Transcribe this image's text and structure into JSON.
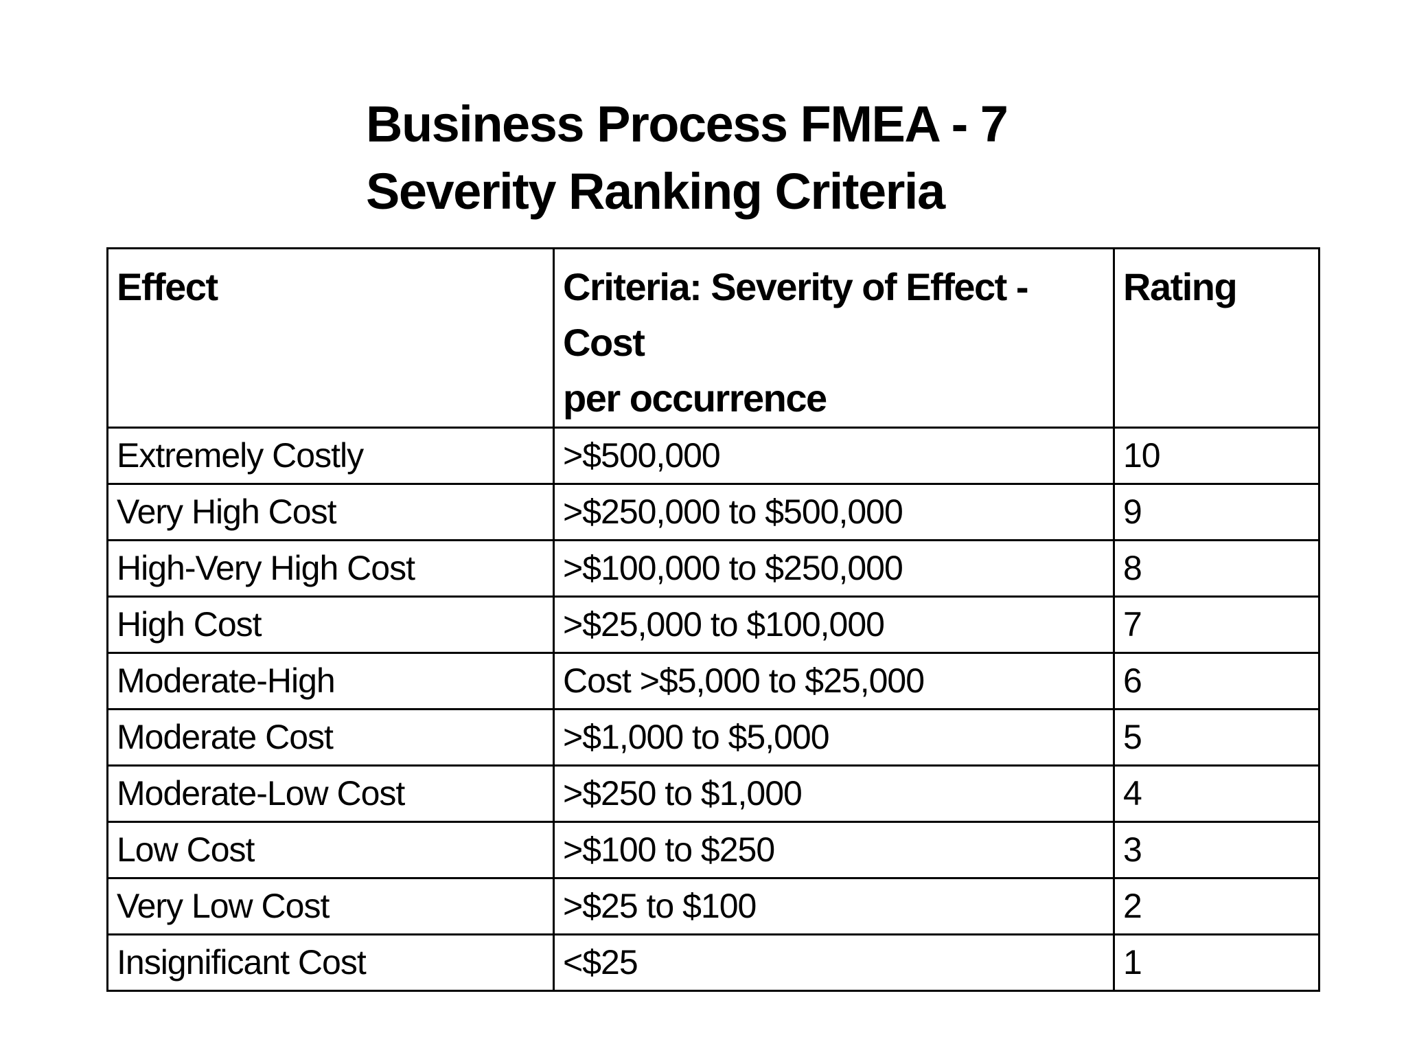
{
  "title": {
    "line1": "Business Process FMEA - 7",
    "line2": "Severity Ranking Criteria"
  },
  "table": {
    "columns": [
      "Effect",
      "Criteria: Severity of Effect - Cost\nper occurrence",
      "Rating"
    ],
    "rows": [
      {
        "effect": "Extremely Costly",
        "criteria": ">$500,000",
        "rating": "10"
      },
      {
        "effect": "Very High Cost",
        "criteria": ">$250,000 to $500,000",
        "rating": "9"
      },
      {
        "effect": "High-Very High Cost",
        "criteria": ">$100,000 to $250,000",
        "rating": "8"
      },
      {
        "effect": "High Cost",
        "criteria": ">$25,000 to $100,000",
        "rating": "7"
      },
      {
        "effect": "Moderate-High",
        "criteria": "Cost >$5,000 to $25,000",
        "rating": "6"
      },
      {
        "effect": "Moderate Cost",
        "criteria": ">$1,000 to $5,000",
        "rating": "5"
      },
      {
        "effect": "Moderate-Low Cost",
        "criteria": ">$250 to $1,000",
        "rating": "4"
      },
      {
        "effect": "Low Cost",
        "criteria": ">$100 to $250",
        "rating": "3"
      },
      {
        "effect": "Very Low Cost",
        "criteria": ">$25 to $100",
        "rating": "2"
      },
      {
        "effect": "Insignificant Cost",
        "criteria": "<$25",
        "rating": "1"
      }
    ]
  },
  "colors": {
    "background": "#ffffff",
    "text": "#000000",
    "border": "#000000"
  }
}
